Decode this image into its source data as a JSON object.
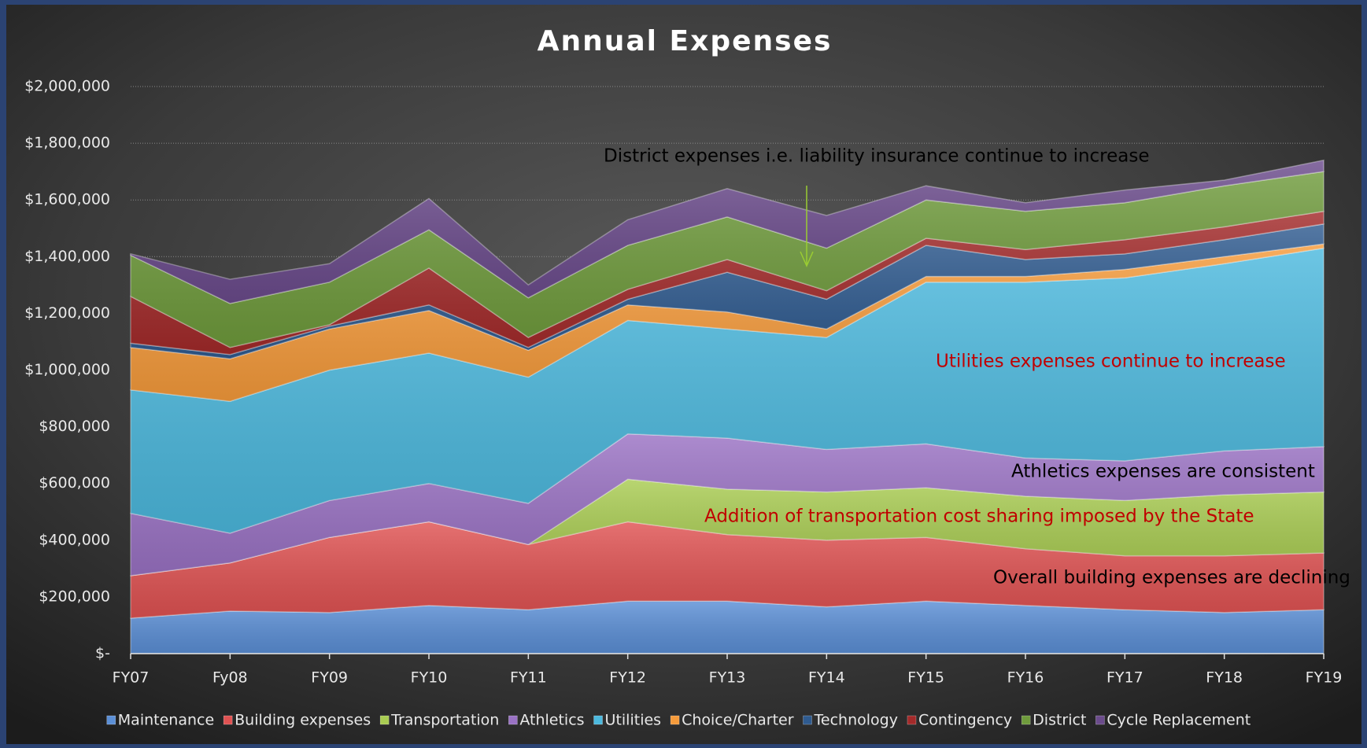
{
  "chart_data": {
    "type": "stacked_area",
    "title": "Annual Expenses",
    "categories": [
      "FY07",
      "Fy08",
      "FY09",
      "FY10",
      "FY11",
      "FY12",
      "FY13",
      "FY14",
      "FY15",
      "FY16",
      "FY17",
      "FY18",
      "FY19"
    ],
    "series": [
      {
        "name": "Maintenance",
        "color": "#5b8fd6",
        "values": [
          125000,
          150000,
          145000,
          170000,
          155000,
          185000,
          185000,
          165000,
          185000,
          170000,
          155000,
          145000,
          155000
        ]
      },
      {
        "name": "Building expenses",
        "color": "#e05252",
        "values": [
          150000,
          170000,
          265000,
          295000,
          230000,
          280000,
          235000,
          235000,
          225000,
          200000,
          190000,
          200000,
          200000
        ]
      },
      {
        "name": "Transportation",
        "color": "#a9cc52",
        "values": [
          0,
          0,
          0,
          0,
          0,
          150000,
          160000,
          170000,
          175000,
          185000,
          195000,
          215000,
          215000
        ]
      },
      {
        "name": "Athletics",
        "color": "#9a72c4",
        "values": [
          220000,
          105000,
          130000,
          135000,
          145000,
          160000,
          180000,
          150000,
          155000,
          135000,
          140000,
          155000,
          160000
        ]
      },
      {
        "name": "Utilities",
        "color": "#4cb9de",
        "values": [
          435000,
          465000,
          460000,
          460000,
          445000,
          400000,
          385000,
          395000,
          570000,
          620000,
          645000,
          660000,
          700000
        ]
      },
      {
        "name": "Choice/Charter",
        "color": "#f69b3b",
        "values": [
          150000,
          150000,
          145000,
          150000,
          95000,
          55000,
          60000,
          30000,
          20000,
          20000,
          30000,
          25000,
          15000
        ]
      },
      {
        "name": "Technology",
        "color": "#2f5b90",
        "values": [
          15000,
          15000,
          10000,
          20000,
          10000,
          20000,
          140000,
          105000,
          110000,
          60000,
          55000,
          60000,
          70000
        ]
      },
      {
        "name": "Contingency",
        "color": "#a32a2a",
        "values": [
          165000,
          25000,
          5000,
          130000,
          35000,
          35000,
          45000,
          30000,
          25000,
          35000,
          50000,
          45000,
          45000
        ]
      },
      {
        "name": "District",
        "color": "#6f9b3c",
        "values": [
          145000,
          155000,
          150000,
          135000,
          140000,
          155000,
          150000,
          150000,
          135000,
          135000,
          130000,
          145000,
          140000
        ]
      },
      {
        "name": "Cycle Replacement",
        "color": "#6b4b8c",
        "values": [
          5000,
          85000,
          65000,
          110000,
          45000,
          90000,
          100000,
          115000,
          50000,
          30000,
          45000,
          20000,
          40000
        ]
      }
    ],
    "ylim": [
      0,
      2000000
    ],
    "yticks": [
      {
        "value": 0,
        "label": "$-"
      },
      {
        "value": 200000,
        "label": "$200,000"
      },
      {
        "value": 400000,
        "label": "$400,000"
      },
      {
        "value": 600000,
        "label": "$600,000"
      },
      {
        "value": 800000,
        "label": "$800,000"
      },
      {
        "value": 1000000,
        "label": "$1,000,000"
      },
      {
        "value": 1200000,
        "label": "$1,200,000"
      },
      {
        "value": 1400000,
        "label": "$1,400,000"
      },
      {
        "value": 1600000,
        "label": "$1,600,000"
      },
      {
        "value": 1800000,
        "label": "$1,800,000"
      },
      {
        "value": 2000000,
        "label": "$2,000,000"
      }
    ],
    "grid": true,
    "legend": "bottom",
    "annotations": [
      {
        "text": "District expenses i.e. liability insurance continue to increase",
        "color": "#000000"
      },
      {
        "text": "Utilities expenses continue to increase",
        "color": "#c00000"
      },
      {
        "text": "Athletics expenses are consistent",
        "color": "#000000"
      },
      {
        "text": "Addition of transportation cost sharing imposed by the State",
        "color": "#c00000"
      },
      {
        "text": "Overall building expenses are declining",
        "color": "#000000"
      }
    ]
  }
}
